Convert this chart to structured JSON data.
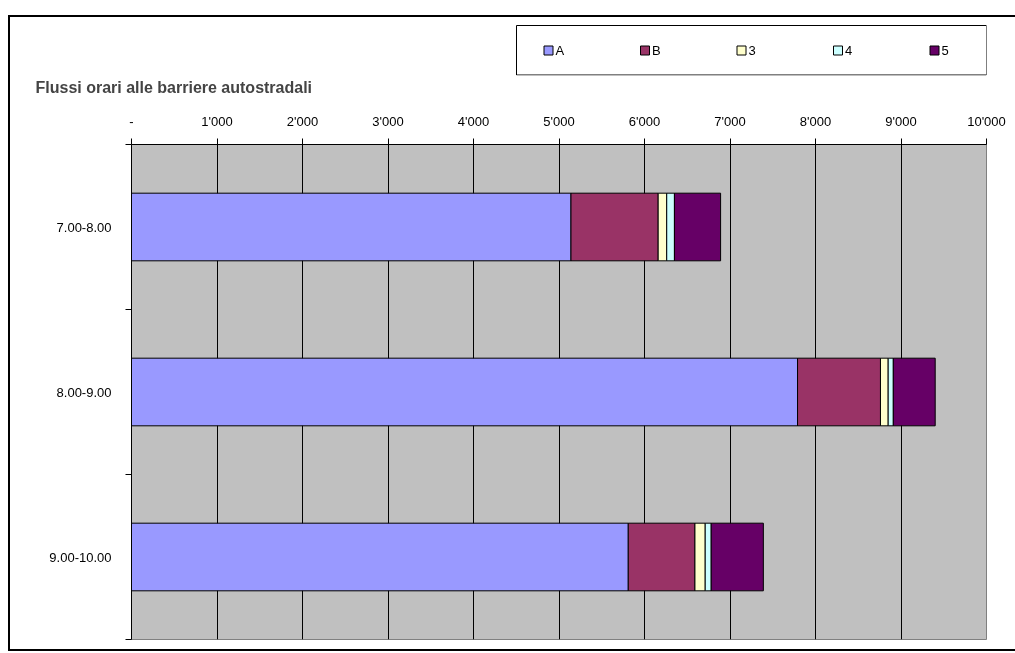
{
  "chart_data": {
    "type": "bar",
    "orientation": "horizontal",
    "stacked": true,
    "title": "Flussi orari alle barriere autostradali",
    "categories": [
      "7.00-8.00",
      "8.00-9.00",
      "9.00-10.00"
    ],
    "series": [
      {
        "name": "A",
        "color": "#9999ff",
        "values": [
          5140,
          7790,
          5810
        ]
      },
      {
        "name": "B",
        "color": "#993366",
        "values": [
          1020,
          970,
          780
        ]
      },
      {
        "name": "3",
        "color": "#ffffcc",
        "values": [
          100,
          90,
          120
        ]
      },
      {
        "name": "4",
        "color": "#ccffff",
        "values": [
          90,
          60,
          70
        ]
      },
      {
        "name": "5",
        "color": "#660066",
        "values": [
          540,
          490,
          610
        ]
      }
    ],
    "xlim": [
      0,
      10000
    ],
    "xticks": [
      {
        "value": 0,
        "label": "-"
      },
      {
        "value": 1000,
        "label": "1'000"
      },
      {
        "value": 2000,
        "label": "2'000"
      },
      {
        "value": 3000,
        "label": "3'000"
      },
      {
        "value": 4000,
        "label": "4'000"
      },
      {
        "value": 5000,
        "label": "5'000"
      },
      {
        "value": 6000,
        "label": "6'000"
      },
      {
        "value": 7000,
        "label": "7'000"
      },
      {
        "value": 8000,
        "label": "8'000"
      },
      {
        "value": 9000,
        "label": "9'000"
      },
      {
        "value": 10000,
        "label": "10'000"
      }
    ],
    "grid": "x",
    "legend": "top right"
  }
}
